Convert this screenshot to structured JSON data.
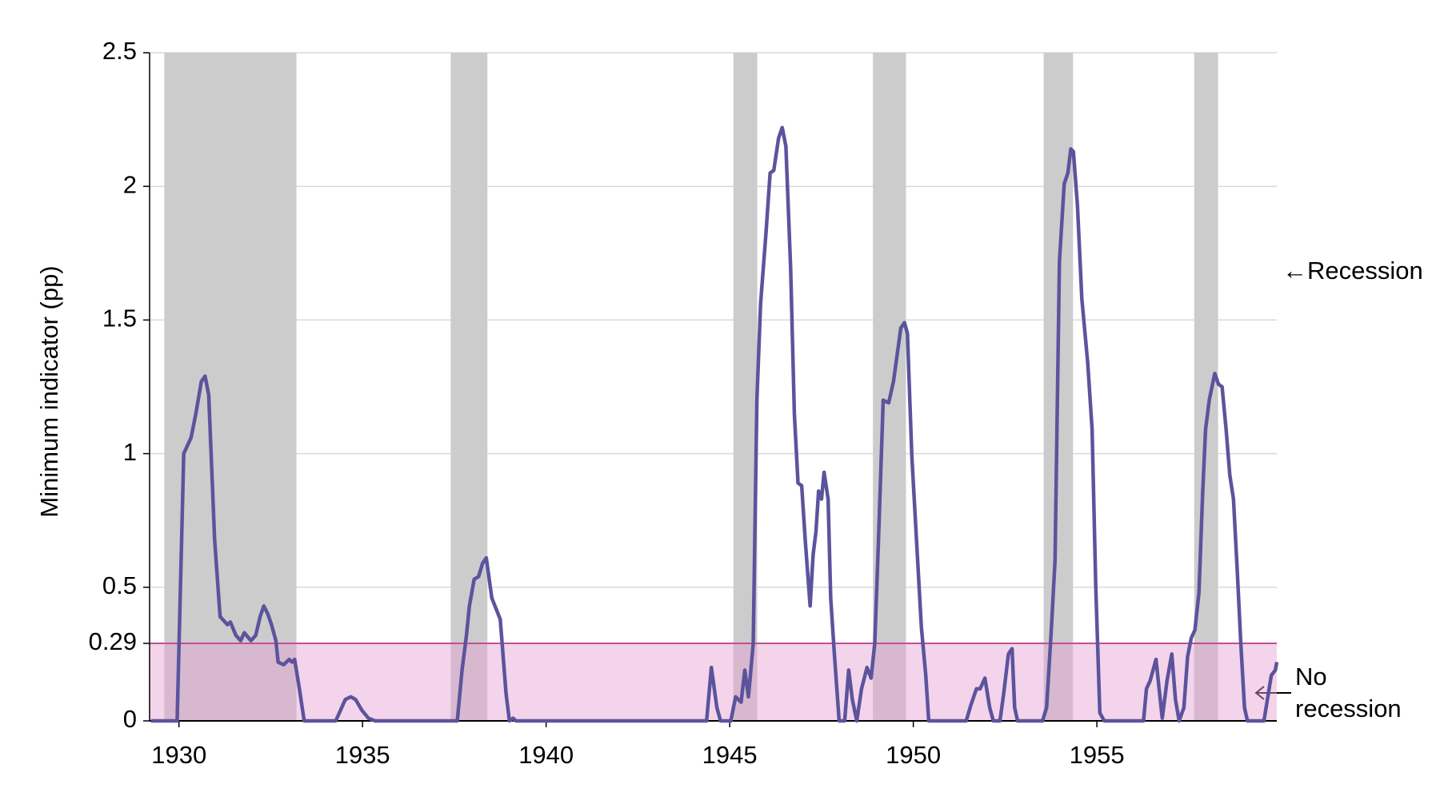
{
  "chart_data": {
    "type": "line",
    "y_label": "Minimum indicator (pp)",
    "xlim": [
      1929.2,
      1959.9
    ],
    "xticks": [
      1930,
      1935,
      1940,
      1945,
      1950,
      1955
    ],
    "ylim": [
      0,
      2.5
    ],
    "yticks": [
      0,
      0.29,
      0.5,
      1,
      1.5,
      2,
      2.5
    ],
    "grid": true,
    "threshold": 0.29,
    "threshold_color": "#c0508f",
    "threshold_fill": "#e6a0d2",
    "shade_color": "#cccccc",
    "shaded_periods": [
      [
        1929.6,
        1933.2
      ],
      [
        1937.4,
        1938.4
      ],
      [
        1945.1,
        1945.75
      ],
      [
        1948.9,
        1949.8
      ],
      [
        1953.55,
        1954.35
      ],
      [
        1957.65,
        1958.3
      ]
    ],
    "annotations": [
      "←Recession",
      "No",
      "recession"
    ],
    "series": [
      {
        "color": "#5b549c",
        "x": [
          1929.24,
          1929.95,
          1930.13,
          1930.33,
          1930.46,
          1930.61,
          1930.71,
          1930.81,
          1930.97,
          1931.12,
          1931.32,
          1931.4,
          1931.55,
          1931.68,
          1931.78,
          1931.96,
          1932.09,
          1932.21,
          1932.31,
          1932.42,
          1932.52,
          1932.64,
          1932.7,
          1932.85,
          1933.0,
          1933.08,
          1933.15,
          1933.28,
          1933.41,
          1934.27,
          1934.53,
          1934.68,
          1934.81,
          1934.98,
          1935.16,
          1935.34,
          1937.58,
          1937.71,
          1937.83,
          1937.91,
          1938.04,
          1938.16,
          1938.27,
          1938.37,
          1938.52,
          1938.75,
          1938.91,
          1939.0,
          1939.1,
          1939.18,
          1944.37,
          1944.5,
          1944.65,
          1944.75,
          1945.03,
          1945.16,
          1945.31,
          1945.41,
          1945.51,
          1945.64,
          1945.74,
          1945.84,
          1945.99,
          1946.1,
          1946.2,
          1946.33,
          1946.43,
          1946.53,
          1946.66,
          1946.76,
          1946.86,
          1946.96,
          1947.06,
          1947.19,
          1947.27,
          1947.35,
          1947.42,
          1947.5,
          1947.57,
          1947.68,
          1947.75,
          1947.85,
          1947.98,
          1948.13,
          1948.24,
          1948.34,
          1948.46,
          1948.59,
          1948.74,
          1948.85,
          1948.95,
          1949.05,
          1949.18,
          1949.33,
          1949.46,
          1949.56,
          1949.66,
          1949.76,
          1949.84,
          1949.96,
          1950.09,
          1950.22,
          1950.34,
          1950.42,
          1951.44,
          1951.57,
          1951.72,
          1951.82,
          1951.95,
          1952.08,
          1952.18,
          1952.36,
          1952.46,
          1952.59,
          1952.69,
          1952.76,
          1952.84,
          1953.52,
          1953.63,
          1953.75,
          1953.86,
          1953.98,
          1954.11,
          1954.21,
          1954.29,
          1954.36,
          1954.47,
          1954.59,
          1954.75,
          1954.87,
          1954.97,
          1955.08,
          1955.2,
          1956.27,
          1956.35,
          1956.45,
          1956.61,
          1956.78,
          1956.91,
          1957.04,
          1957.14,
          1957.24,
          1957.37,
          1957.47,
          1957.57,
          1957.67,
          1957.78,
          1957.88,
          1957.96,
          1958.06,
          1958.21,
          1958.31,
          1958.41,
          1958.52,
          1958.62,
          1958.72,
          1958.82,
          1958.92,
          1959.02,
          1959.1,
          1959.55,
          1959.75,
          1959.86,
          1959.9
        ],
        "values": [
          0,
          0,
          1.0,
          1.06,
          1.15,
          1.27,
          1.29,
          1.22,
          0.68,
          0.39,
          0.36,
          0.37,
          0.32,
          0.3,
          0.33,
          0.3,
          0.32,
          0.39,
          0.43,
          0.4,
          0.36,
          0.3,
          0.22,
          0.21,
          0.23,
          0.22,
          0.23,
          0.12,
          0,
          0,
          0.08,
          0.09,
          0.08,
          0.04,
          0.01,
          0,
          0,
          0.19,
          0.32,
          0.43,
          0.53,
          0.54,
          0.59,
          0.61,
          0.46,
          0.38,
          0.1,
          0,
          0.01,
          0,
          0,
          0.2,
          0.05,
          0,
          0,
          0.09,
          0.07,
          0.19,
          0.09,
          0.29,
          1.2,
          1.56,
          1.83,
          2.05,
          2.06,
          2.18,
          2.22,
          2.15,
          1.69,
          1.15,
          0.89,
          0.88,
          0.67,
          0.43,
          0.62,
          0.71,
          0.86,
          0.83,
          0.93,
          0.83,
          0.46,
          0.25,
          0,
          0,
          0.19,
          0.08,
          0,
          0.12,
          0.2,
          0.16,
          0.29,
          0.67,
          1.2,
          1.19,
          1.27,
          1.37,
          1.47,
          1.49,
          1.45,
          0.99,
          0.67,
          0.35,
          0.17,
          0,
          0,
          0.06,
          0.12,
          0.12,
          0.16,
          0.05,
          0,
          0,
          0.1,
          0.25,
          0.27,
          0.05,
          0,
          0,
          0.05,
          0.32,
          0.6,
          1.72,
          2.01,
          2.05,
          2.14,
          2.13,
          1.93,
          1.58,
          1.34,
          1.09,
          0.5,
          0.03,
          0,
          0,
          0.12,
          0.15,
          0.23,
          0.01,
          0.15,
          0.25,
          0.08,
          0,
          0.05,
          0.24,
          0.31,
          0.34,
          0.48,
          0.85,
          1.09,
          1.2,
          1.3,
          1.26,
          1.25,
          1.09,
          0.92,
          0.83,
          0.57,
          0.29,
          0.05,
          0,
          0,
          0.17,
          0.19,
          0.22
        ]
      }
    ]
  }
}
